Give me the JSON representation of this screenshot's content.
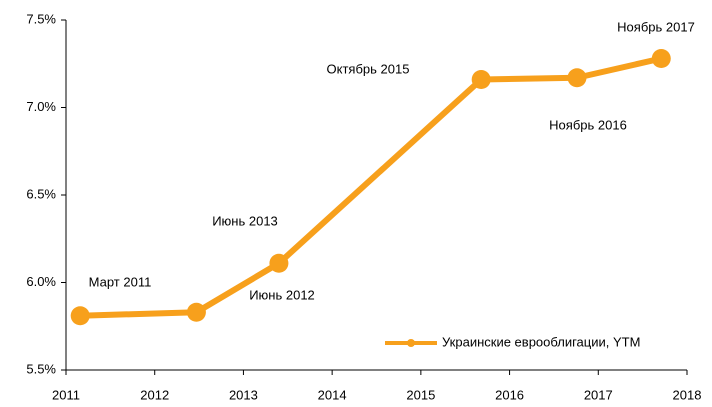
{
  "chart_data": {
    "type": "line",
    "x": [
      2011.16,
      2012.47,
      2013.4,
      2015.68,
      2016.76,
      2017.71
    ],
    "series": [
      {
        "name": "Украинские еврооблигации, YTM",
        "color": "#f7a01c",
        "values": [
          5.81,
          5.83,
          6.11,
          7.16,
          7.17,
          7.28
        ]
      }
    ],
    "annotations": [
      "Март 2011",
      "Июнь 2012",
      "Июнь 2013",
      "Октябрь 2015",
      "Ноябрь 2016",
      "Ноябрь 2017"
    ],
    "xlim": [
      2011,
      2018
    ],
    "xticks": [
      2011,
      2012,
      2013,
      2014,
      2015,
      2016,
      2017,
      2018
    ],
    "ylim": [
      5.5,
      7.5
    ],
    "yticks": [
      {
        "value": 5.5,
        "label": "5.5%"
      },
      {
        "value": 6.0,
        "label": "6.0%"
      },
      {
        "value": 6.5,
        "label": "6.5%"
      },
      {
        "value": 7.0,
        "label": "7.0%"
      },
      {
        "value": 7.5,
        "label": "7.5%"
      }
    ],
    "legend": "lower right"
  }
}
